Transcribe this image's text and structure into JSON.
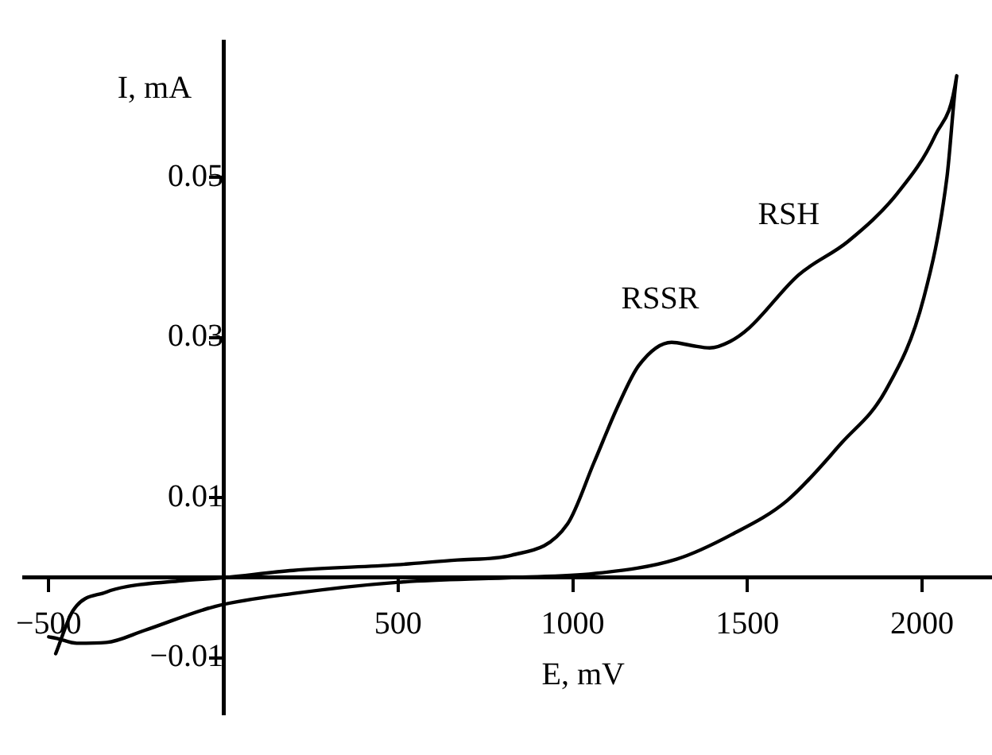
{
  "chart_data": {
    "type": "line",
    "xlabel": "E, mV",
    "ylabel": "I, mA",
    "series": [
      {
        "color": "#000000",
        "x": [
          -480,
          -430,
          -335,
          -274,
          -120,
          0,
          200,
          495,
          670,
          825,
          985,
          1061,
          1130,
          1189,
          1283,
          1340,
          1392,
          1450,
          1505,
          1646,
          1788,
          1929,
          2038,
          2099,
          2071,
          2005,
          1896,
          1769,
          1613,
          1456,
          1297,
          1061,
          825,
          495,
          198,
          -24,
          -226,
          -335,
          -420,
          -476,
          -500
        ],
        "values": [
          -0.0095,
          -0.0041,
          -0.0018,
          -0.0011,
          -0.0004,
          0,
          0.0009,
          0.0016,
          0.0022,
          0.0028,
          0.0067,
          0.0144,
          0.0215,
          0.0265,
          0.0294,
          0.029,
          0.0287,
          0.0295,
          0.0312,
          0.0378,
          0.042,
          0.048,
          0.0553,
          0.0627,
          0.05,
          0.035,
          0.0234,
          0.0168,
          0.0096,
          0.0054,
          0.0023,
          0.0005,
          0,
          -0.0006,
          -0.002,
          -0.0036,
          -0.0066,
          -0.0081,
          -0.0082,
          -0.0076,
          -0.0074
        ]
      }
    ],
    "xlim": [
      -570,
      2200
    ],
    "ylim": [
      -0.017,
      0.067
    ],
    "xticks": [
      -500,
      500,
      1000,
      1500,
      2000
    ],
    "yticks": [
      -0.01,
      0.01,
      0.03,
      0.05
    ],
    "grid": false,
    "legend": false,
    "marker": "none",
    "line_style": "solid",
    "annotations": [
      "RSSR",
      "RSH"
    ]
  }
}
